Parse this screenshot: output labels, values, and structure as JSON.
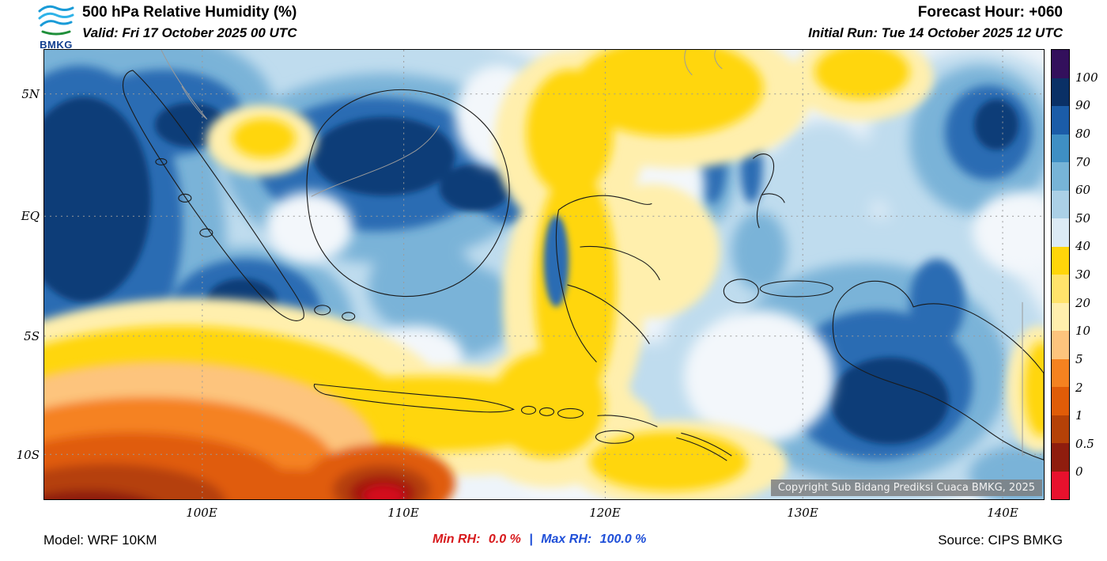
{
  "header": {
    "logo_text": "BMKG",
    "title": "500 hPa Relative Humidity (%)",
    "valid": "Valid: Fri 17 October 2025 00 UTC",
    "forecast_hour": "Forecast Hour: +060",
    "initial_run": "Initial Run: Tue 14 October 2025 12 UTC"
  },
  "map": {
    "y_ticks": [
      "5N",
      "EQ",
      "5S",
      "10S"
    ],
    "x_ticks": [
      "100E",
      "110E",
      "120E",
      "130E",
      "140E"
    ],
    "copyright": "Copyright Sub Bidang Prediksi Cuaca BMKG, 2025"
  },
  "colorbar": {
    "labels": [
      "100",
      "90",
      "80",
      "70",
      "60",
      "50",
      "40",
      "30",
      "20",
      "10",
      "5",
      "2",
      "1",
      "0.5",
      "0"
    ],
    "colors": [
      "#33105c",
      "#0a3066",
      "#1b5ca8",
      "#3f8fc4",
      "#77b4d7",
      "#abd0e6",
      "#dcebf5",
      "#ffd60a",
      "#ffe36b",
      "#ffefad",
      "#fdc47d",
      "#f58220",
      "#e05c08",
      "#b54107",
      "#8f1d0e",
      "#e8112d"
    ]
  },
  "footer": {
    "model": "Model: WRF 10KM",
    "min_label": "Min RH:",
    "min_value": "0.0 %",
    "separator": "|",
    "max_label": "Max RH:",
    "max_value": "100.0 %",
    "source": "Source: CIPS BMKG"
  },
  "chart_data": {
    "type": "heatmap",
    "title": "500 hPa Relative Humidity (%)",
    "x_tick_labels": [
      "100E",
      "110E",
      "120E",
      "130E",
      "140E"
    ],
    "y_tick_labels": [
      "5N",
      "EQ",
      "5S",
      "10S"
    ],
    "x_range_deg_east": [
      92,
      142
    ],
    "y_range_deg_north": [
      -12,
      7
    ],
    "levels_percent": [
      0,
      0.5,
      1,
      2,
      5,
      10,
      20,
      30,
      40,
      50,
      60,
      70,
      80,
      90,
      100
    ],
    "units": "%",
    "legend_position": "right",
    "grid": "dashed",
    "min_rh_percent": 0.0,
    "max_rh_percent": 100.0
  }
}
